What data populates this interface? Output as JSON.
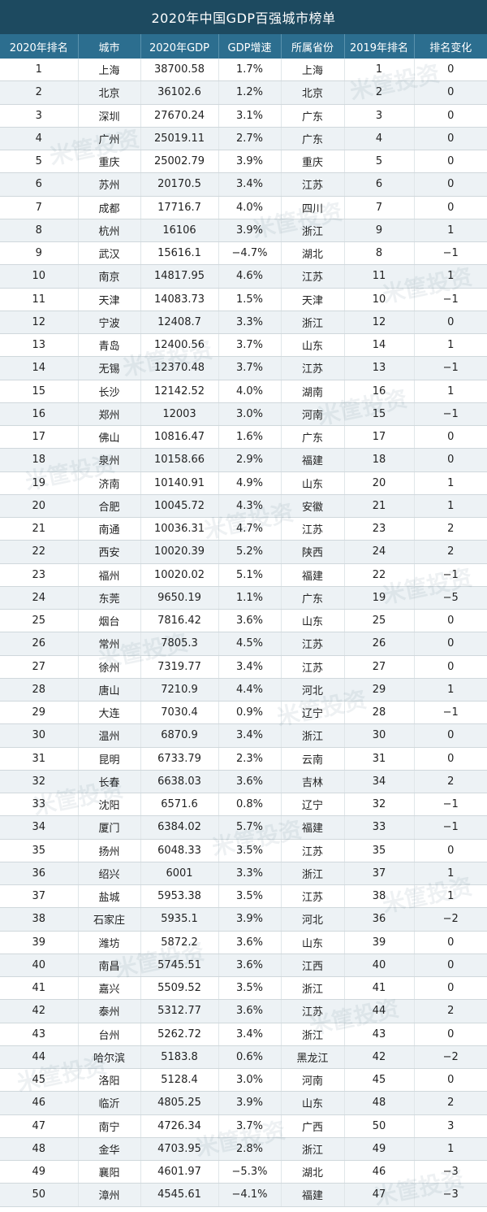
{
  "title": "2020年中国GDP百强城市榜单",
  "headers": [
    "2020年排名",
    "城市",
    "2020年GDP",
    "GDP增速",
    "所属省份",
    "2019年排名",
    "排名变化"
  ],
  "watermark": "米筐投资",
  "rows": [
    [
      "1",
      "上海",
      "38700.58",
      "1.7%",
      "上海",
      "1",
      "0"
    ],
    [
      "2",
      "北京",
      "36102.6",
      "1.2%",
      "北京",
      "2",
      "0"
    ],
    [
      "3",
      "深圳",
      "27670.24",
      "3.1%",
      "广东",
      "3",
      "0"
    ],
    [
      "4",
      "广州",
      "25019.11",
      "2.7%",
      "广东",
      "4",
      "0"
    ],
    [
      "5",
      "重庆",
      "25002.79",
      "3.9%",
      "重庆",
      "5",
      "0"
    ],
    [
      "6",
      "苏州",
      "20170.5",
      "3.4%",
      "江苏",
      "6",
      "0"
    ],
    [
      "7",
      "成都",
      "17716.7",
      "4.0%",
      "四川",
      "7",
      "0"
    ],
    [
      "8",
      "杭州",
      "16106",
      "3.9%",
      "浙江",
      "9",
      "1"
    ],
    [
      "9",
      "武汉",
      "15616.1",
      "−4.7%",
      "湖北",
      "8",
      "−1"
    ],
    [
      "10",
      "南京",
      "14817.95",
      "4.6%",
      "江苏",
      "11",
      "1"
    ],
    [
      "11",
      "天津",
      "14083.73",
      "1.5%",
      "天津",
      "10",
      "−1"
    ],
    [
      "12",
      "宁波",
      "12408.7",
      "3.3%",
      "浙江",
      "12",
      "0"
    ],
    [
      "13",
      "青岛",
      "12400.56",
      "3.7%",
      "山东",
      "14",
      "1"
    ],
    [
      "14",
      "无锡",
      "12370.48",
      "3.7%",
      "江苏",
      "13",
      "−1"
    ],
    [
      "15",
      "长沙",
      "12142.52",
      "4.0%",
      "湖南",
      "16",
      "1"
    ],
    [
      "16",
      "郑州",
      "12003",
      "3.0%",
      "河南",
      "15",
      "−1"
    ],
    [
      "17",
      "佛山",
      "10816.47",
      "1.6%",
      "广东",
      "17",
      "0"
    ],
    [
      "18",
      "泉州",
      "10158.66",
      "2.9%",
      "福建",
      "18",
      "0"
    ],
    [
      "19",
      "济南",
      "10140.91",
      "4.9%",
      "山东",
      "20",
      "1"
    ],
    [
      "20",
      "合肥",
      "10045.72",
      "4.3%",
      "安徽",
      "21",
      "1"
    ],
    [
      "21",
      "南通",
      "10036.31",
      "4.7%",
      "江苏",
      "23",
      "2"
    ],
    [
      "22",
      "西安",
      "10020.39",
      "5.2%",
      "陕西",
      "24",
      "2"
    ],
    [
      "23",
      "福州",
      "10020.02",
      "5.1%",
      "福建",
      "22",
      "−1"
    ],
    [
      "24",
      "东莞",
      "9650.19",
      "1.1%",
      "广东",
      "19",
      "−5"
    ],
    [
      "25",
      "烟台",
      "7816.42",
      "3.6%",
      "山东",
      "25",
      "0"
    ],
    [
      "26",
      "常州",
      "7805.3",
      "4.5%",
      "江苏",
      "26",
      "0"
    ],
    [
      "27",
      "徐州",
      "7319.77",
      "3.4%",
      "江苏",
      "27",
      "0"
    ],
    [
      "28",
      "唐山",
      "7210.9",
      "4.4%",
      "河北",
      "29",
      "1"
    ],
    [
      "29",
      "大连",
      "7030.4",
      "0.9%",
      "辽宁",
      "28",
      "−1"
    ],
    [
      "30",
      "温州",
      "6870.9",
      "3.4%",
      "浙江",
      "30",
      "0"
    ],
    [
      "31",
      "昆明",
      "6733.79",
      "2.3%",
      "云南",
      "31",
      "0"
    ],
    [
      "32",
      "长春",
      "6638.03",
      "3.6%",
      "吉林",
      "34",
      "2"
    ],
    [
      "33",
      "沈阳",
      "6571.6",
      "0.8%",
      "辽宁",
      "32",
      "−1"
    ],
    [
      "34",
      "厦门",
      "6384.02",
      "5.7%",
      "福建",
      "33",
      "−1"
    ],
    [
      "35",
      "扬州",
      "6048.33",
      "3.5%",
      "江苏",
      "35",
      "0"
    ],
    [
      "36",
      "绍兴",
      "6001",
      "3.3%",
      "浙江",
      "37",
      "1"
    ],
    [
      "37",
      "盐城",
      "5953.38",
      "3.5%",
      "江苏",
      "38",
      "1"
    ],
    [
      "38",
      "石家庄",
      "5935.1",
      "3.9%",
      "河北",
      "36",
      "−2"
    ],
    [
      "39",
      "潍坊",
      "5872.2",
      "3.6%",
      "山东",
      "39",
      "0"
    ],
    [
      "40",
      "南昌",
      "5745.51",
      "3.6%",
      "江西",
      "40",
      "0"
    ],
    [
      "41",
      "嘉兴",
      "5509.52",
      "3.5%",
      "浙江",
      "41",
      "0"
    ],
    [
      "42",
      "泰州",
      "5312.77",
      "3.6%",
      "江苏",
      "44",
      "2"
    ],
    [
      "43",
      "台州",
      "5262.72",
      "3.4%",
      "浙江",
      "43",
      "0"
    ],
    [
      "44",
      "哈尔滨",
      "5183.8",
      "0.6%",
      "黑龙江",
      "42",
      "−2"
    ],
    [
      "45",
      "洛阳",
      "5128.4",
      "3.0%",
      "河南",
      "45",
      "0"
    ],
    [
      "46",
      "临沂",
      "4805.25",
      "3.9%",
      "山东",
      "48",
      "2"
    ],
    [
      "47",
      "南宁",
      "4726.34",
      "3.7%",
      "广西",
      "50",
      "3"
    ],
    [
      "48",
      "金华",
      "4703.95",
      "2.8%",
      "浙江",
      "49",
      "1"
    ],
    [
      "49",
      "襄阳",
      "4601.97",
      "−5.3%",
      "湖北",
      "46",
      "−3"
    ],
    [
      "50",
      "漳州",
      "4545.61",
      "−4.1%",
      "福建",
      "47",
      "−3"
    ]
  ]
}
